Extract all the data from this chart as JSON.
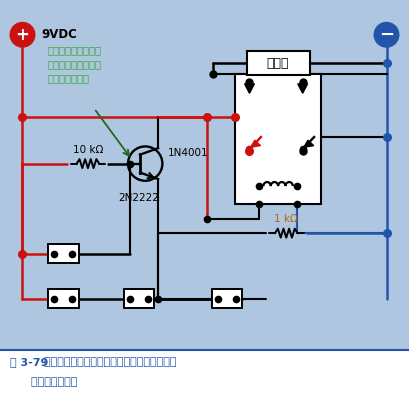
{
  "bg_color": "#aec6e0",
  "vdc_label": "9VDC",
  "resistor1_label": "10 kΩ",
  "resistor2_label": "1 kΩ",
  "transistor_label": "2N2222",
  "diode_label": "1N4001",
  "alarm_label": "报警器",
  "annotation_text": "晶体管基极上的低电\n压使晶体管阻砙了通\n向继电器的电流",
  "caption_bold": "图 3-79",
  "caption_rest": "  此电路中，传感器网络中的任何一个开关断开\n      都会激励继电器",
  "red": "#cc1111",
  "blue": "#2255aa",
  "black": "#000000",
  "orange": "#bb6600",
  "green": "#336600",
  "white": "#ffffff"
}
